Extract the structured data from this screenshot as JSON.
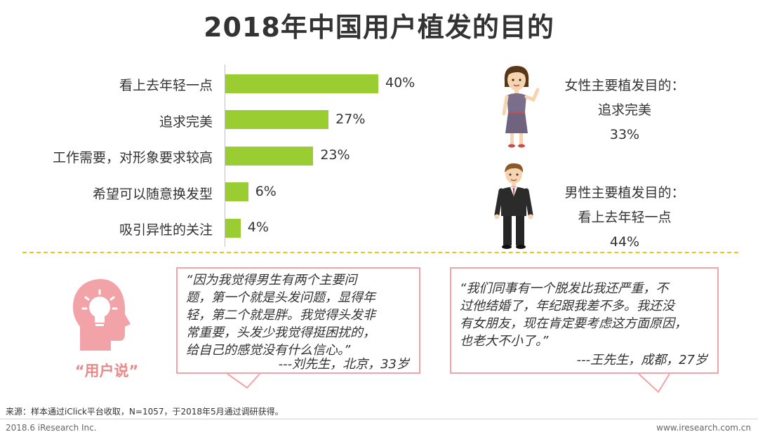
{
  "title": "2018年中国用户植发的目的",
  "chart_data": {
    "type": "bar",
    "orientation": "horizontal",
    "categories": [
      "看上去年轻一点",
      "追求完美",
      "工作需要，对形象要求较高",
      "希望可以随意换发型",
      "吸引异性的关注"
    ],
    "values": [
      40,
      27,
      23,
      6,
      4
    ],
    "value_labels": [
      "40%",
      "27%",
      "23%",
      "6%",
      "4%"
    ],
    "unit": "%",
    "xlim": [
      0,
      100
    ],
    "bar_color": "#9acd32",
    "grid": false
  },
  "female_summary": {
    "heading": "女性主要植发目的：",
    "reason": "追求完美",
    "percent": "33%"
  },
  "male_summary": {
    "heading": "男性主要植发目的：",
    "reason": "看上去年轻一点",
    "percent": "44%"
  },
  "user_says_label": "“用户说”",
  "quotes": [
    {
      "lines": [
        "“因为我觉得男生有两个主要问",
        "题，第一个就是头发问题，显得年",
        "轻，第二个就是胖。我觉得头发非",
        "常重要，头发少我觉得挺困扰的，",
        "给自己的感觉没有什么信心。”"
      ],
      "signature": "---刘先生，北京，33岁"
    },
    {
      "lines": [
        "“我们同事有一个脱发比我还严重，不",
        "过他结婚了，年纪跟我差不多。我还没",
        "有女朋友，现在肯定要考虑这方面原因，",
        "也老大不小了。”"
      ],
      "signature": "---王先生，成都，27岁"
    }
  ],
  "colors": {
    "bar": "#9acd32",
    "divider": "#f0c419",
    "quote_border": "#f2a3a7",
    "icon": "#f2a3a7"
  },
  "source": "来源：样本通过iClick平台收取，N=1057，于2018年5月通过调研获得。",
  "footer_left": "2018.6 iResearch Inc.",
  "footer_right": "www.iresearch.com.cn"
}
